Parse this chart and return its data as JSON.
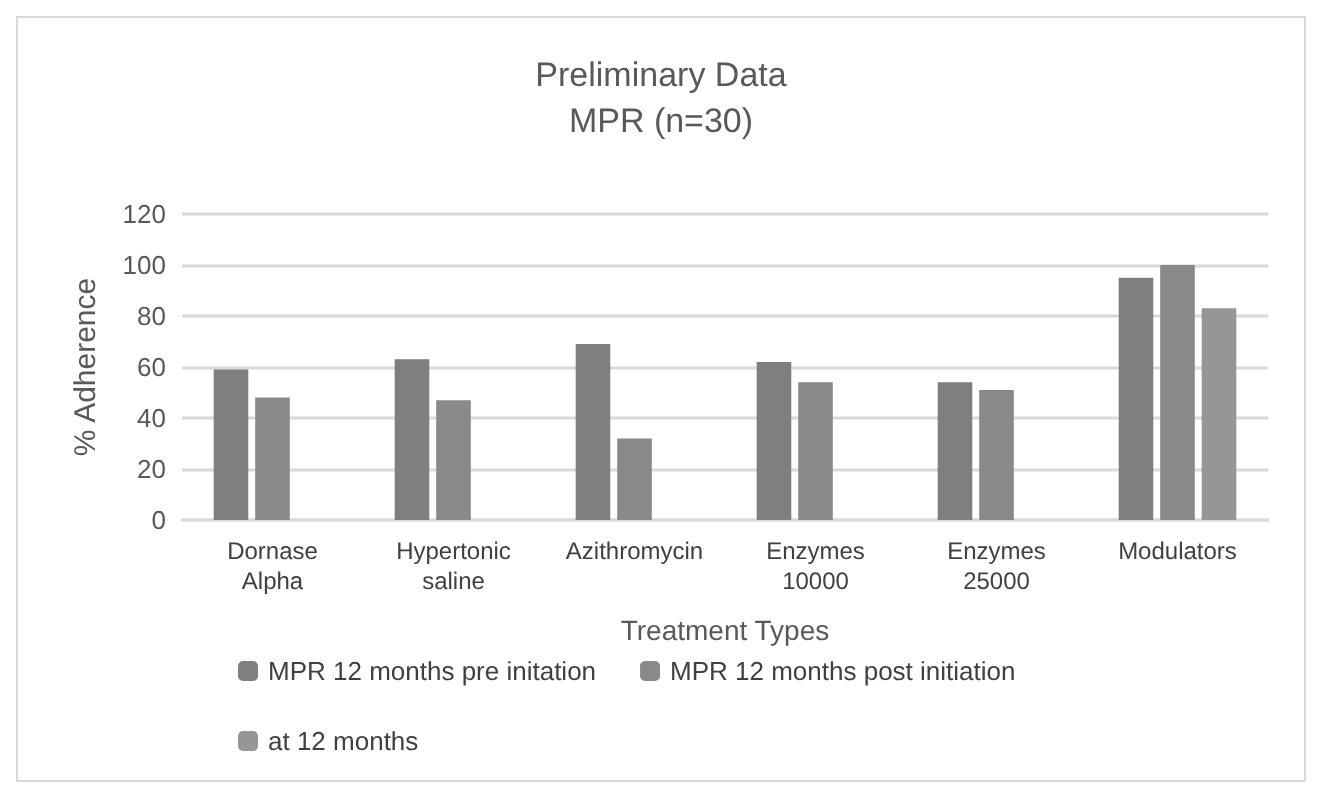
{
  "chart_data": {
    "type": "bar",
    "title": "Preliminary Data",
    "subtitle": "MPR (n=30)",
    "xlabel": "Treatment Types",
    "ylabel": "% Adherence",
    "categories": [
      "Dornase\nAlpha",
      "Hypertonic\nsaline",
      "Azithromycin",
      "Enzymes\n10000",
      "Enzymes\n25000",
      "Modulators"
    ],
    "series": [
      {
        "name": "MPR 12 months pre initation",
        "color": "#7f7f7f",
        "values": [
          59,
          63,
          69,
          62,
          54,
          95
        ]
      },
      {
        "name": "MPR 12 months post initiation",
        "color": "#898989",
        "values": [
          48,
          47,
          32,
          54,
          51,
          100
        ]
      },
      {
        "name": "at 12 months",
        "color": "#969696",
        "values": [
          null,
          null,
          null,
          null,
          null,
          83
        ]
      }
    ],
    "ylim": [
      0,
      120
    ],
    "yticks": [
      0,
      20,
      40,
      60,
      80,
      100,
      120
    ],
    "grid": "y",
    "legend": "bottom"
  }
}
